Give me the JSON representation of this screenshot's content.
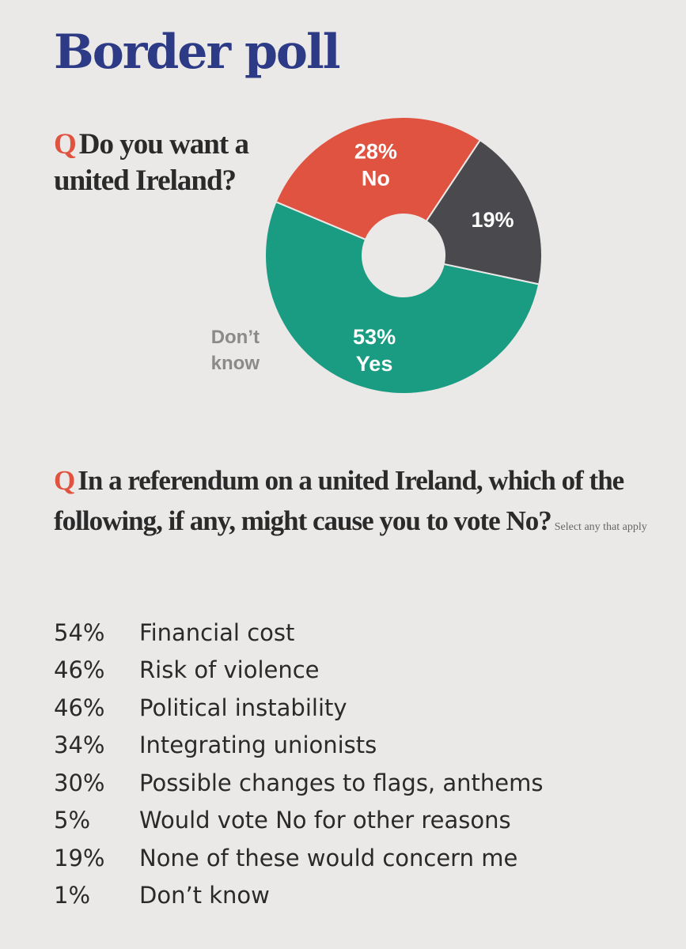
{
  "title": "Border poll",
  "question1": {
    "marker": "Q",
    "text": "Do you want a united Ireland?"
  },
  "chart_data": {
    "type": "pie",
    "donut": true,
    "slices": [
      {
        "label": "Yes",
        "value": 53,
        "display": "53%",
        "color": "#1a9c82"
      },
      {
        "label": "No",
        "value": 28,
        "display": "28%",
        "color": "#e05340"
      },
      {
        "label": "Don’t know",
        "value": 19,
        "display": "19%",
        "color": "#4a4a4e"
      }
    ]
  },
  "dont_know_label": "Don’t\nknow",
  "question2": {
    "marker": "Q",
    "text": "In a referendum on a united Ireland, which of the following, if any, might cause you to vote No?",
    "note": "Select any that apply"
  },
  "reasons": [
    {
      "pct": "54%",
      "label": "Financial cost"
    },
    {
      "pct": "46%",
      "label": "Risk of violence"
    },
    {
      "pct": "46%",
      "label": "Political instability"
    },
    {
      "pct": "34%",
      "label": "Integrating unionists"
    },
    {
      "pct": "30%",
      "label": "Possible changes to flags, anthems"
    },
    {
      "pct": "5%",
      "label": "Would vote No for other reasons"
    },
    {
      "pct": "19%",
      "label": "None of these would concern me"
    },
    {
      "pct": "1%",
      "label": "Don’t know"
    }
  ]
}
